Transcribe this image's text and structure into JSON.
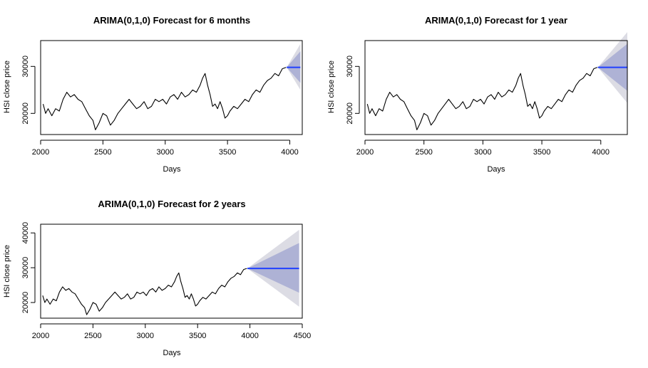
{
  "chart_data": [
    {
      "type": "line",
      "title": "ARIMA(0,1,0) Forecast for 6 months",
      "xlabel": "Days",
      "ylabel": "HSI close price",
      "xlim": [
        2000,
        4100
      ],
      "ylim": [
        15500,
        35500
      ],
      "x_ticks": [
        "2000",
        "2500",
        "3000",
        "3500",
        "4000"
      ],
      "y_ticks": [
        "20000",
        "30000"
      ],
      "history": {
        "x": [
          2020,
          2040,
          2060,
          2090,
          2120,
          2150,
          2180,
          2210,
          2240,
          2270,
          2300,
          2330,
          2360,
          2390,
          2420,
          2440,
          2470,
          2500,
          2530,
          2560,
          2590,
          2620,
          2650,
          2680,
          2710,
          2740,
          2770,
          2800,
          2830,
          2860,
          2890,
          2920,
          2950,
          2980,
          3010,
          3040,
          3070,
          3100,
          3130,
          3160,
          3190,
          3220,
          3250,
          3280,
          3300,
          3320,
          3340,
          3360,
          3380,
          3400,
          3420,
          3440,
          3460,
          3480,
          3500,
          3520,
          3550,
          3580,
          3610,
          3640,
          3670,
          3700,
          3730,
          3760,
          3790,
          3820,
          3850,
          3880,
          3910,
          3940,
          3970
        ],
        "y": [
          22000,
          20000,
          21000,
          19500,
          21000,
          20500,
          23000,
          24500,
          23500,
          24000,
          23000,
          22500,
          21000,
          19500,
          18500,
          16500,
          18000,
          20000,
          19500,
          17500,
          18500,
          20000,
          21000,
          22000,
          23000,
          22000,
          21000,
          21500,
          22500,
          21000,
          21500,
          23000,
          22500,
          23000,
          22000,
          23500,
          24000,
          23000,
          24500,
          23500,
          24000,
          25000,
          24500,
          26000,
          27500,
          28500,
          26000,
          24000,
          21500,
          22000,
          21000,
          22500,
          21000,
          19000,
          19500,
          20500,
          21500,
          21000,
          22000,
          23000,
          22500,
          24000,
          25000,
          24500,
          26000,
          27000,
          27500,
          28500,
          28000,
          29500,
          29800
        ]
      },
      "forecast": {
        "x": [
          3975,
          4085
        ],
        "mean": [
          29800,
          29800
        ],
        "lower80": [
          29800,
          26500
        ],
        "upper80": [
          29800,
          33200
        ],
        "lower95": [
          29800,
          25000
        ],
        "upper95": [
          29800,
          34800
        ]
      }
    },
    {
      "type": "line",
      "title": "ARIMA(0,1,0) Forecast for 1 year",
      "xlabel": "Days",
      "ylabel": "HSI close price",
      "xlim": [
        2000,
        4225
      ],
      "ylim": [
        15500,
        35500
      ],
      "x_ticks": [
        "2000",
        "2500",
        "3000",
        "3500",
        "4000"
      ],
      "y_ticks": [
        "20000",
        "30000"
      ],
      "history": {
        "x": [
          2020,
          2040,
          2060,
          2090,
          2120,
          2150,
          2180,
          2210,
          2240,
          2270,
          2300,
          2330,
          2360,
          2390,
          2420,
          2440,
          2470,
          2500,
          2530,
          2560,
          2590,
          2620,
          2650,
          2680,
          2710,
          2740,
          2770,
          2800,
          2830,
          2860,
          2890,
          2920,
          2950,
          2980,
          3010,
          3040,
          3070,
          3100,
          3130,
          3160,
          3190,
          3220,
          3250,
          3280,
          3300,
          3320,
          3340,
          3360,
          3380,
          3400,
          3420,
          3440,
          3460,
          3480,
          3500,
          3520,
          3550,
          3580,
          3610,
          3640,
          3670,
          3700,
          3730,
          3760,
          3790,
          3820,
          3850,
          3880,
          3910,
          3940,
          3970
        ],
        "y": [
          22000,
          20000,
          21000,
          19500,
          21000,
          20500,
          23000,
          24500,
          23500,
          24000,
          23000,
          22500,
          21000,
          19500,
          18500,
          16500,
          18000,
          20000,
          19500,
          17500,
          18500,
          20000,
          21000,
          22000,
          23000,
          22000,
          21000,
          21500,
          22500,
          21000,
          21500,
          23000,
          22500,
          23000,
          22000,
          23500,
          24000,
          23000,
          24500,
          23500,
          24000,
          25000,
          24500,
          26000,
          27500,
          28500,
          26000,
          24000,
          21500,
          22000,
          21000,
          22500,
          21000,
          19000,
          19500,
          20500,
          21500,
          21000,
          22000,
          23000,
          22500,
          24000,
          25000,
          24500,
          26000,
          27000,
          27500,
          28500,
          28000,
          29500,
          29800
        ]
      },
      "forecast": {
        "x": [
          3975,
          4225
        ],
        "mean": [
          29800,
          29800
        ],
        "lower80": [
          29800,
          24800
        ],
        "upper80": [
          29800,
          34800
        ],
        "lower95": [
          29800,
          22200
        ],
        "upper95": [
          29800,
          37300
        ]
      }
    },
    {
      "type": "line",
      "title": "ARIMA(0,1,0) Forecast for 2 years",
      "xlabel": "Days",
      "ylabel": "HSI close price",
      "xlim": [
        2000,
        4500
      ],
      "ylim": [
        15500,
        42500
      ],
      "x_ticks": [
        "2000",
        "2500",
        "3000",
        "3500",
        "4000",
        "4500"
      ],
      "y_ticks": [
        "20000",
        "30000",
        "40000"
      ],
      "history": {
        "x": [
          2020,
          2040,
          2060,
          2090,
          2120,
          2150,
          2180,
          2210,
          2240,
          2270,
          2300,
          2330,
          2360,
          2390,
          2420,
          2440,
          2470,
          2500,
          2530,
          2560,
          2590,
          2620,
          2650,
          2680,
          2710,
          2740,
          2770,
          2800,
          2830,
          2860,
          2890,
          2920,
          2950,
          2980,
          3010,
          3040,
          3070,
          3100,
          3130,
          3160,
          3190,
          3220,
          3250,
          3280,
          3300,
          3320,
          3340,
          3360,
          3380,
          3400,
          3420,
          3440,
          3460,
          3480,
          3500,
          3520,
          3550,
          3580,
          3610,
          3640,
          3670,
          3700,
          3730,
          3760,
          3790,
          3820,
          3850,
          3880,
          3910,
          3940,
          3970
        ],
        "y": [
          22000,
          20000,
          21000,
          19500,
          21000,
          20500,
          23000,
          24500,
          23500,
          24000,
          23000,
          22500,
          21000,
          19500,
          18500,
          16500,
          18000,
          20000,
          19500,
          17500,
          18500,
          20000,
          21000,
          22000,
          23000,
          22000,
          21000,
          21500,
          22500,
          21000,
          21500,
          23000,
          22500,
          23000,
          22000,
          23500,
          24000,
          23000,
          24500,
          23500,
          24000,
          25000,
          24500,
          26000,
          27500,
          28500,
          26000,
          24000,
          21500,
          22000,
          21000,
          22500,
          21000,
          19000,
          19500,
          20500,
          21500,
          21000,
          22000,
          23000,
          22500,
          24000,
          25000,
          24500,
          26000,
          27000,
          27500,
          28500,
          28000,
          29500,
          29800
        ]
      },
      "forecast": {
        "x": [
          3975,
          4470
        ],
        "mean": [
          29800,
          29800
        ],
        "lower80": [
          29800,
          22800
        ],
        "upper80": [
          29800,
          37100
        ],
        "lower95": [
          29800,
          18800
        ],
        "upper95": [
          29800,
          40900
        ]
      }
    }
  ],
  "colors": {
    "history_line": "#000000",
    "forecast_line": "#1f3fff",
    "band80": "#aeb2d5",
    "band95": "#dcdce4",
    "frame": "#000000"
  }
}
